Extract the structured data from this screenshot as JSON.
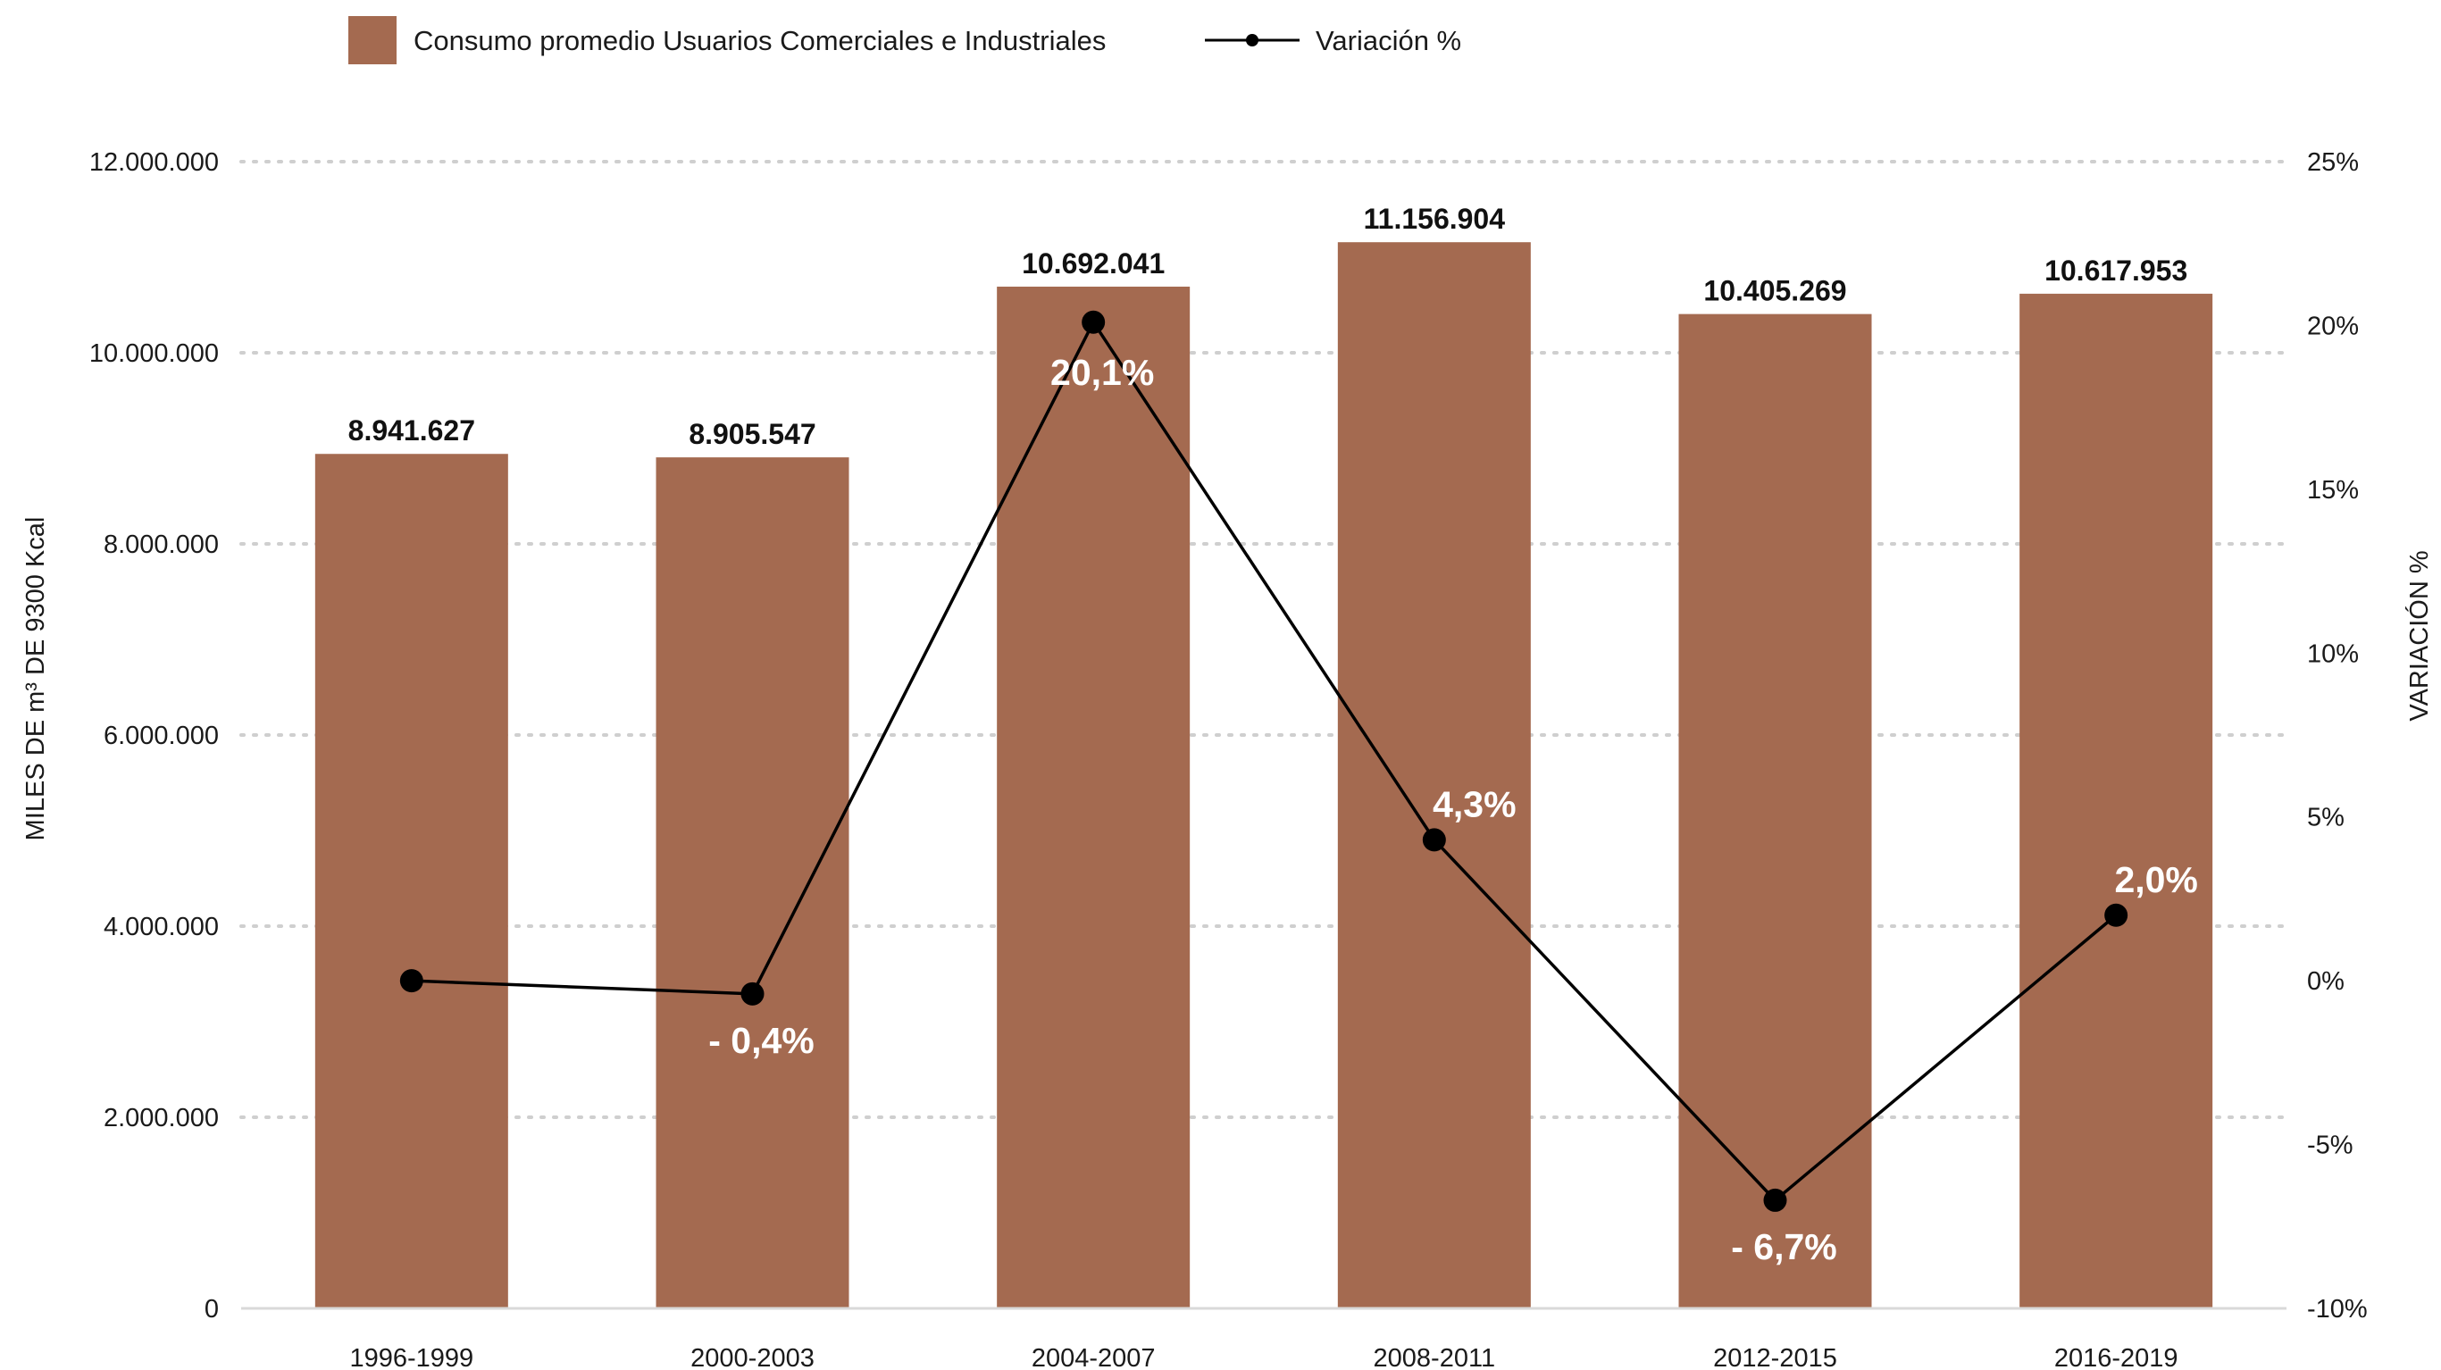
{
  "chart_data": {
    "type": "bar",
    "categories": [
      "1996-1999",
      "2000-2003",
      "2004-2007",
      "2008-2011",
      "2012-2015",
      "2016-2019"
    ],
    "series": [
      {
        "name": "Consumo promedio Usuarios Comerciales e Industriales",
        "type": "bar",
        "axis": "left",
        "color": "#A46A50",
        "values": [
          8941627,
          8905547,
          10692041,
          11156904,
          10405269,
          10617953
        ],
        "labels": [
          "8.941.627",
          "8.905.547",
          "10.692.041",
          "11.156.904",
          "10.405.269",
          "10.617.953"
        ]
      },
      {
        "name": "Variación %",
        "type": "line",
        "axis": "right",
        "color": "#000000",
        "values": [
          0,
          -0.4,
          20.1,
          4.3,
          -6.7,
          2.0
        ],
        "labels": [
          "",
          "- 0,4%",
          "20,1%",
          "4,3%",
          "- 6,7%",
          "2,0%"
        ]
      }
    ],
    "ylabel": "MILES DE m³ DE 9300 Kcal",
    "y2label": "VARIACIÓN %",
    "ylim": [
      0,
      12000000
    ],
    "y2lim": [
      -10,
      25
    ],
    "yticks": [
      0,
      2000000,
      4000000,
      6000000,
      8000000,
      10000000,
      12000000
    ],
    "ytick_labels": [
      "0",
      "2.000.000",
      "4.000.000",
      "6.000.000",
      "8.000.000",
      "10.000.000",
      "12.000.000"
    ],
    "y2ticks": [
      -10,
      -5,
      0,
      5,
      10,
      15,
      20,
      25
    ],
    "y2tick_labels": [
      "-10%",
      "-5%",
      "0%",
      "5%",
      "10%",
      "15%",
      "20%",
      "25%"
    ],
    "grid": true,
    "legend_position": "top"
  }
}
